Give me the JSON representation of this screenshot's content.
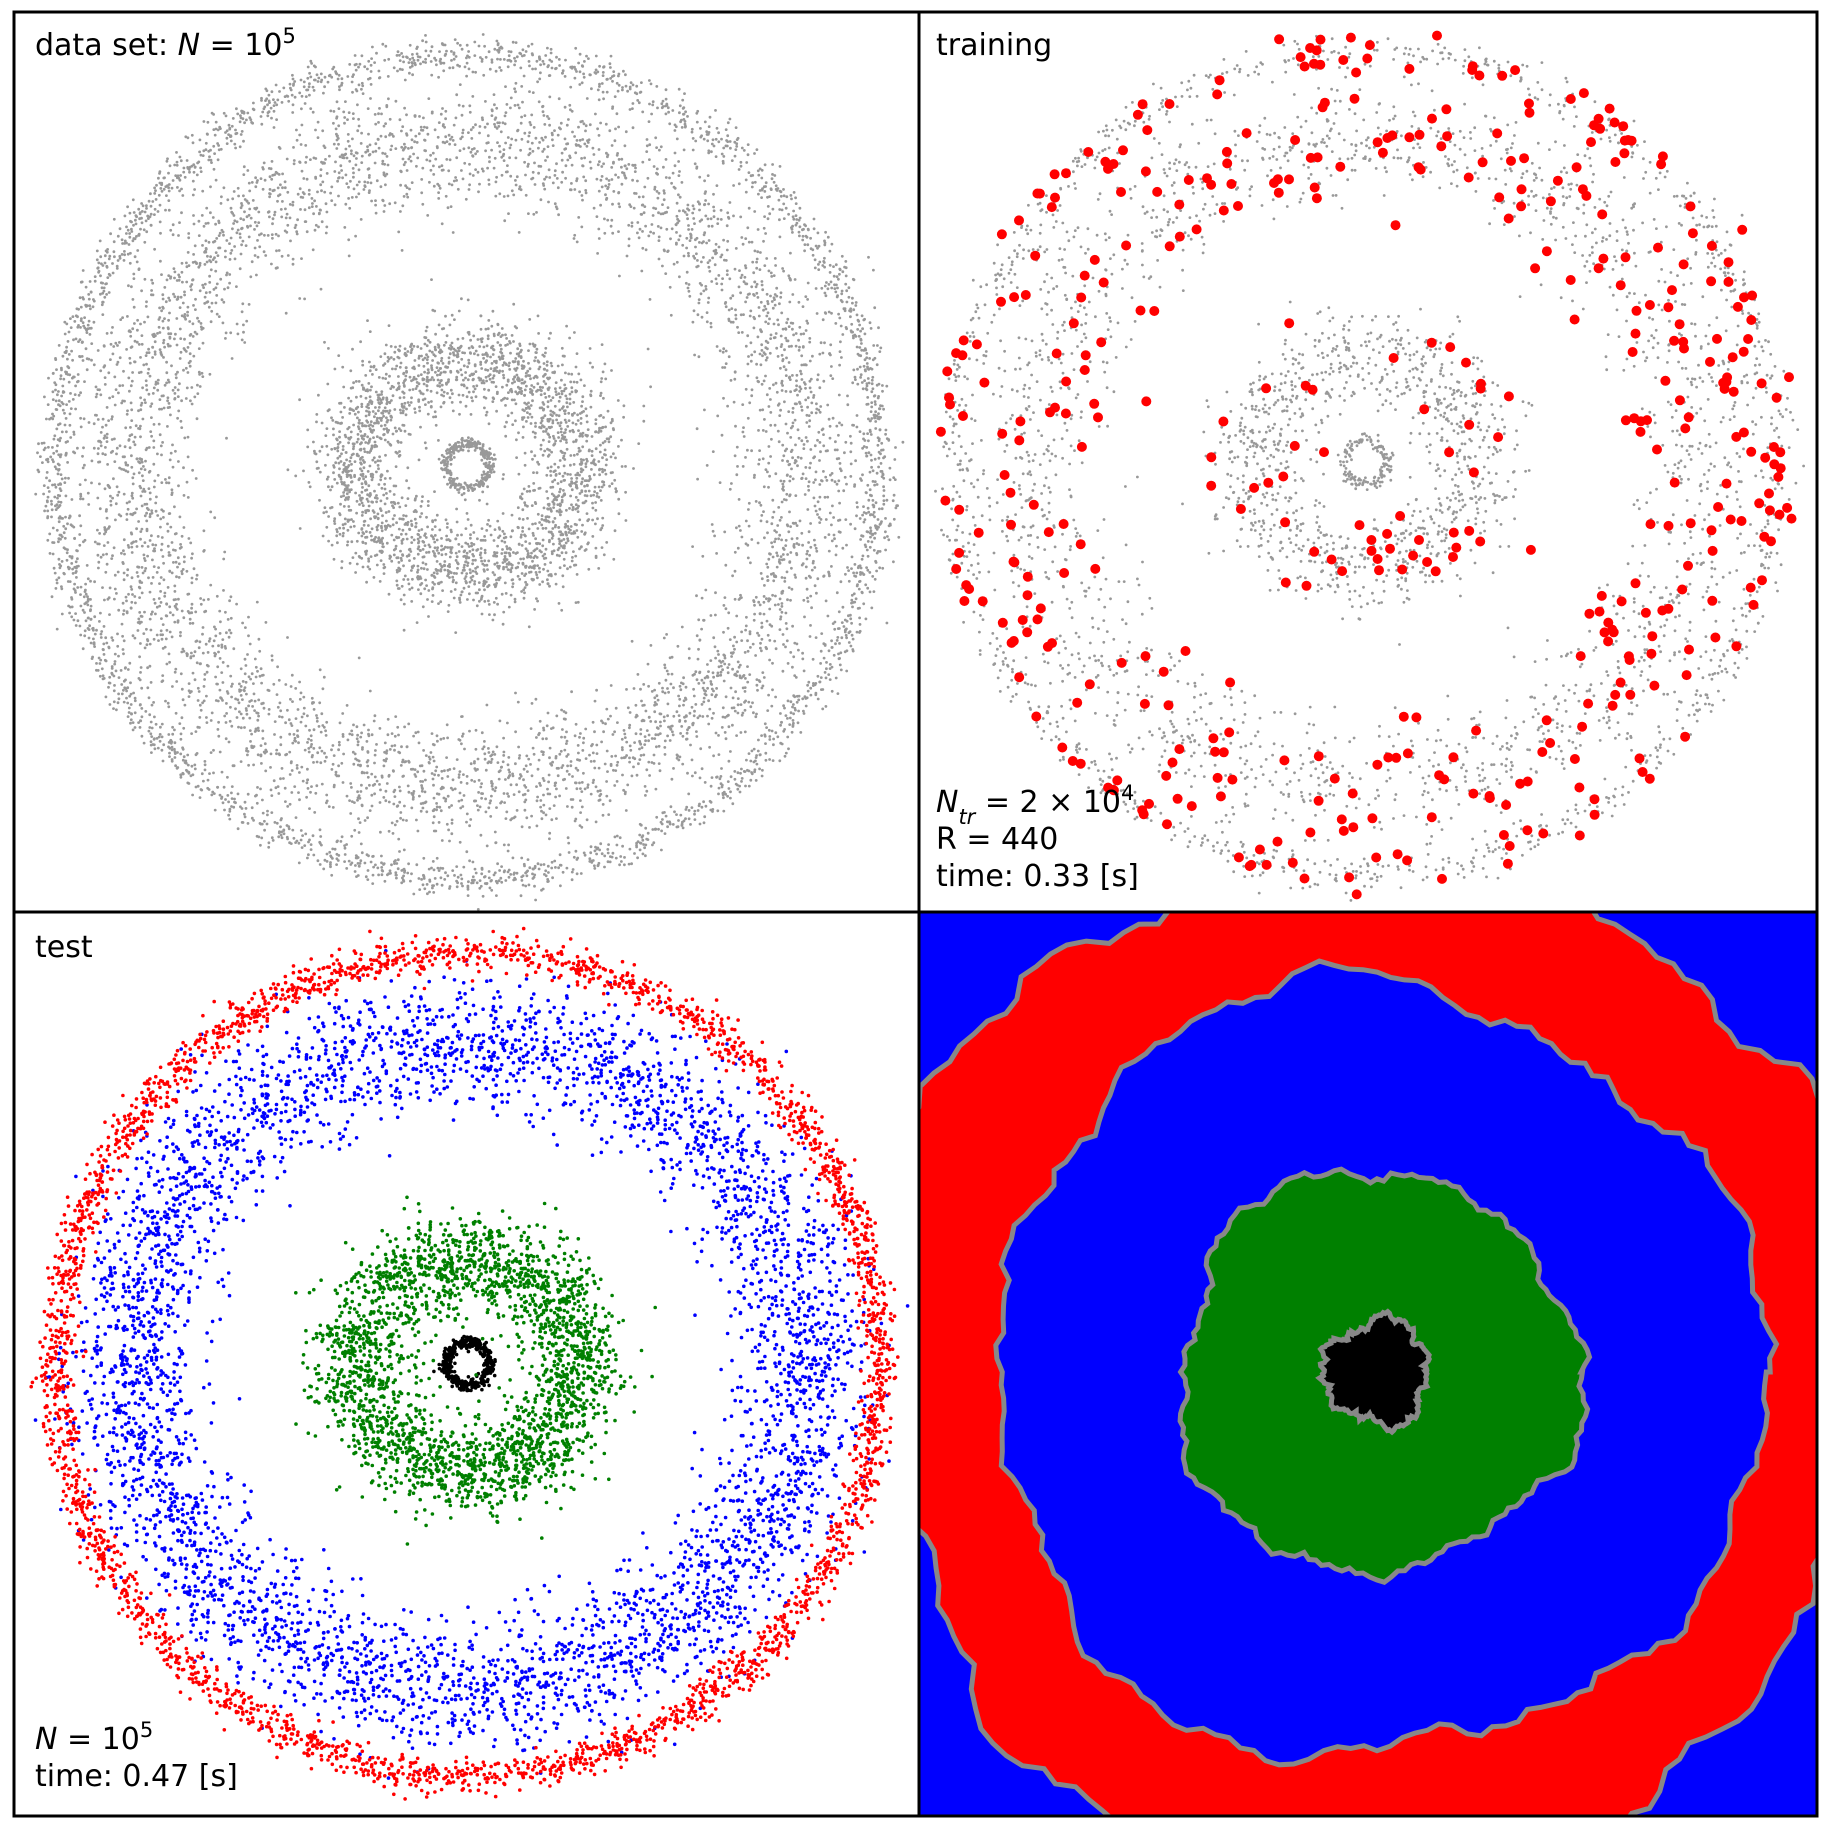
{
  "panels": [
    {
      "lines": [
        [
          {
            "text": "data set: "
          },
          {
            "text": "N",
            "style": "italic"
          },
          {
            "text": " = 10"
          },
          {
            "text": "5",
            "style": "sup"
          }
        ]
      ]
    },
    {
      "lines": [
        [
          {
            "text": "training"
          }
        ]
      ],
      "notes": [
        [
          {
            "text": "N",
            "style": "italic"
          },
          {
            "text": "tr",
            "style": "sub"
          },
          {
            "text": " = 2 × 10"
          },
          {
            "text": "4",
            "style": "sup"
          }
        ],
        [
          {
            "text": "R = 440"
          }
        ],
        [
          {
            "text": "time: 0.33 [s]"
          }
        ]
      ]
    },
    {
      "lines": [
        [
          {
            "text": "test"
          }
        ]
      ],
      "notes": [
        [
          {
            "text": "N",
            "style": "italic"
          },
          {
            "text": " = 10"
          },
          {
            "text": "5",
            "style": "sup"
          }
        ],
        [
          {
            "text": "time: 0.47 [s]"
          }
        ]
      ]
    },
    {}
  ]
}
